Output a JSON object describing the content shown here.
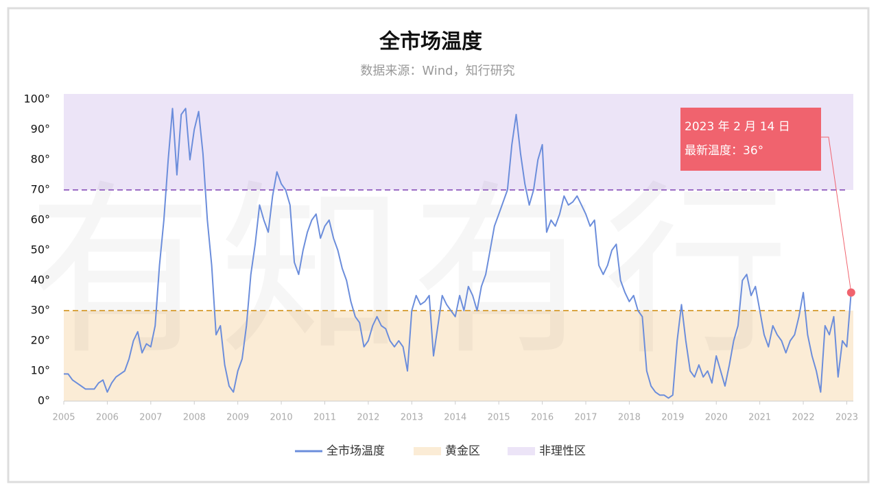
{
  "chart_data": {
    "type": "line",
    "title": "全市场温度",
    "subtitle": "数据来源：Wind，知行研究",
    "watermark": "有知有行",
    "x": [
      2005.0,
      2005.1,
      2005.2,
      2005.3,
      2005.4,
      2005.5,
      2005.6,
      2005.7,
      2005.8,
      2005.9,
      2006.0,
      2006.1,
      2006.2,
      2006.3,
      2006.4,
      2006.5,
      2006.6,
      2006.7,
      2006.8,
      2006.9,
      2007.0,
      2007.1,
      2007.2,
      2007.3,
      2007.4,
      2007.5,
      2007.6,
      2007.7,
      2007.8,
      2007.9,
      2008.0,
      2008.1,
      2008.2,
      2008.3,
      2008.4,
      2008.5,
      2008.6,
      2008.7,
      2008.8,
      2008.9,
      2009.0,
      2009.1,
      2009.2,
      2009.3,
      2009.4,
      2009.5,
      2009.6,
      2009.7,
      2009.8,
      2009.9,
      2010.0,
      2010.1,
      2010.2,
      2010.3,
      2010.4,
      2010.5,
      2010.6,
      2010.7,
      2010.8,
      2010.9,
      2011.0,
      2011.1,
      2011.2,
      2011.3,
      2011.4,
      2011.5,
      2011.6,
      2011.7,
      2011.8,
      2011.9,
      2012.0,
      2012.1,
      2012.2,
      2012.3,
      2012.4,
      2012.5,
      2012.6,
      2012.7,
      2012.8,
      2012.9,
      2013.0,
      2013.1,
      2013.2,
      2013.3,
      2013.4,
      2013.5,
      2013.6,
      2013.7,
      2013.8,
      2013.9,
      2014.0,
      2014.1,
      2014.2,
      2014.3,
      2014.4,
      2014.5,
      2014.6,
      2014.7,
      2014.8,
      2014.9,
      2015.0,
      2015.1,
      2015.2,
      2015.3,
      2015.4,
      2015.5,
      2015.6,
      2015.7,
      2015.8,
      2015.9,
      2016.0,
      2016.1,
      2016.2,
      2016.3,
      2016.4,
      2016.5,
      2016.6,
      2016.7,
      2016.8,
      2016.9,
      2017.0,
      2017.1,
      2017.2,
      2017.3,
      2017.4,
      2017.5,
      2017.6,
      2017.7,
      2017.8,
      2017.9,
      2018.0,
      2018.1,
      2018.2,
      2018.3,
      2018.4,
      2018.5,
      2018.6,
      2018.7,
      2018.8,
      2018.9,
      2019.0,
      2019.1,
      2019.2,
      2019.3,
      2019.4,
      2019.5,
      2019.6,
      2019.7,
      2019.8,
      2019.9,
      2020.0,
      2020.1,
      2020.2,
      2020.3,
      2020.4,
      2020.5,
      2020.6,
      2020.7,
      2020.8,
      2020.9,
      2021.0,
      2021.1,
      2021.2,
      2021.3,
      2021.4,
      2021.5,
      2021.6,
      2021.7,
      2021.8,
      2021.9,
      2022.0,
      2022.1,
      2022.2,
      2022.3,
      2022.4,
      2022.5,
      2022.6,
      2022.7,
      2022.8,
      2022.9,
      2023.0,
      2023.1
    ],
    "series": [
      {
        "name": "全市场温度",
        "color": "#6b8ddb",
        "values": [
          9,
          9,
          7,
          6,
          5,
          4,
          4,
          4,
          6,
          7,
          3,
          6,
          8,
          9,
          10,
          14,
          20,
          23,
          16,
          19,
          18,
          25,
          45,
          60,
          80,
          97,
          75,
          95,
          97,
          80,
          90,
          96,
          82,
          60,
          45,
          22,
          25,
          12,
          5,
          3,
          10,
          14,
          25,
          42,
          52,
          65,
          60,
          56,
          68,
          76,
          72,
          70,
          65,
          46,
          42,
          50,
          56,
          60,
          62,
          54,
          58,
          60,
          54,
          50,
          44,
          40,
          33,
          28,
          26,
          18,
          20,
          25,
          28,
          25,
          24,
          20,
          18,
          20,
          18,
          10,
          30,
          35,
          32,
          33,
          35,
          15,
          25,
          35,
          32,
          30,
          28,
          35,
          30,
          38,
          35,
          30,
          38,
          42,
          50,
          58,
          62,
          66,
          70,
          85,
          95,
          82,
          72,
          65,
          70,
          80,
          85,
          56,
          60,
          58,
          62,
          68,
          65,
          66,
          68,
          65,
          62,
          58,
          60,
          45,
          42,
          45,
          50,
          52,
          40,
          36,
          33,
          35,
          30,
          28,
          10,
          5,
          3,
          2,
          2,
          1,
          2,
          20,
          32,
          20,
          10,
          8,
          12,
          8,
          10,
          6,
          15,
          10,
          5,
          12,
          20,
          25,
          40,
          42,
          35,
          38,
          30,
          22,
          18,
          25,
          22,
          20,
          16,
          20,
          22,
          28,
          36,
          22,
          15,
          10,
          3,
          25,
          22,
          28,
          8,
          20,
          18,
          36
        ]
      }
    ],
    "zones": [
      {
        "name": "黄金区",
        "range": [
          0,
          30
        ],
        "color": "#fbecd6",
        "line_color": "#d9a441"
      },
      {
        "name": "非理性区",
        "range": [
          70,
          100
        ],
        "color": "#ece4f7",
        "line_color": "#9b6bc4"
      }
    ],
    "annotation": {
      "date": "2023 年 2 月 14 日",
      "text": "最新温度：36°",
      "color": "#f0636e"
    },
    "xlim": [
      2005,
      2023.15
    ],
    "xticks": [
      2005,
      2006,
      2007,
      2008,
      2009,
      2010,
      2011,
      2012,
      2013,
      2014,
      2015,
      2016,
      2017,
      2018,
      2019,
      2020,
      2021,
      2022,
      2023
    ],
    "ylim": [
      0,
      100
    ],
    "yticks": [
      {
        "value": 0,
        "label": "0°"
      },
      {
        "value": 10,
        "label": "10°"
      },
      {
        "value": 20,
        "label": "20°"
      },
      {
        "value": 30,
        "label": "30°"
      },
      {
        "value": 40,
        "label": "40°"
      },
      {
        "value": 50,
        "label": "50°"
      },
      {
        "value": 60,
        "label": "60°"
      },
      {
        "value": 70,
        "label": "70°"
      },
      {
        "value": 80,
        "label": "80°"
      },
      {
        "value": 90,
        "label": "90°"
      },
      {
        "value": 100,
        "label": "100°"
      }
    ],
    "legend": "bottom"
  }
}
